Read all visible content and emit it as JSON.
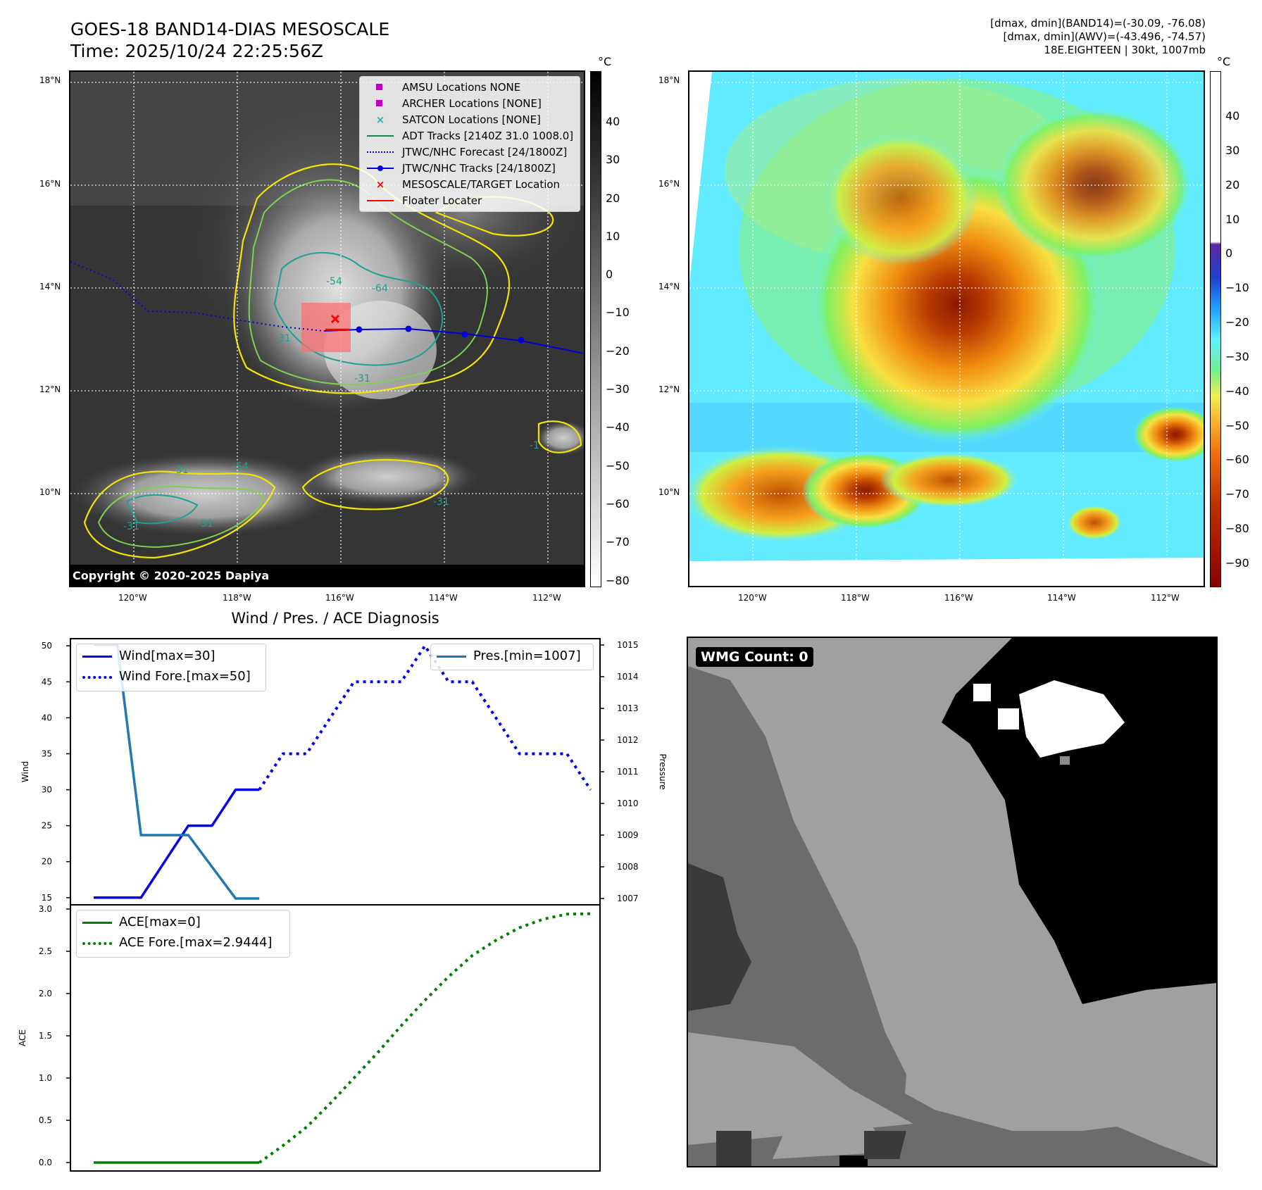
{
  "header": {
    "title_line1": "GOES-18 BAND14-DIAS MESOSCALE",
    "title_line2": "Time: 2025/10/24 22:25:56Z",
    "info_line1": "[dmax, dmin](BAND14)=(-30.09, -76.08)",
    "info_line2": "[dmax, dmin](AWV)=(-43.496, -74.57)",
    "info_line3": "18E.EIGHTEEN | 30kt, 1007mb"
  },
  "map": {
    "lat_labels": [
      "18°N",
      "16°N",
      "14°N",
      "12°N",
      "10°N"
    ],
    "lon_labels": [
      "120°W",
      "118°W",
      "116°W",
      "114°W",
      "112°W"
    ],
    "copyright": "Copyright © 2020-2025 Dapiya",
    "contour_labels": [
      "-54",
      "-64",
      "-31",
      "-31",
      "-31",
      "-31",
      "-54",
      "-31",
      "-31",
      "-1"
    ],
    "legend": [
      {
        "label": "AMSU Locations NONE",
        "symbol": "square",
        "color": "#c000c0"
      },
      {
        "label": "ARCHER Locations [NONE]",
        "symbol": "square",
        "color": "#c000c0"
      },
      {
        "label": "SATCON Locations [NONE]",
        "symbol": "x",
        "color": "#20b0b0"
      },
      {
        "label": "ADT Tracks [2140Z 31.0 1008.0]",
        "symbol": "line",
        "color": "#118844"
      },
      {
        "label": "JTWC/NHC Forecast [24/1800Z]",
        "symbol": "dotted",
        "color": "#0000dd"
      },
      {
        "label": "JTWC/NHC Tracks [24/1800Z]",
        "symbol": "dot-line",
        "color": "#0000dd"
      },
      {
        "label": "MESOSCALE/TARGET Location",
        "symbol": "x",
        "color": "#ff0000"
      },
      {
        "label": "Floater Locater",
        "symbol": "line",
        "color": "#ff0000"
      }
    ]
  },
  "colorbars": {
    "unit": "°C",
    "gray_ticks": [
      "40",
      "30",
      "20",
      "10",
      "0",
      "−10",
      "−20",
      "−30",
      "−40",
      "−50",
      "−60",
      "−70",
      "−80"
    ],
    "color_ticks": [
      "40",
      "30",
      "20",
      "10",
      "0",
      "−10",
      "−20",
      "−30",
      "−40",
      "−50",
      "−60",
      "−70",
      "−80",
      "−90"
    ]
  },
  "diagnosis": {
    "title": "Wind / Pres. / ACE Diagnosis",
    "wind_ylabel": "Wind",
    "pres_ylabel": "Pressure",
    "ace_ylabel": "ACE",
    "legend_wind": "Wind[max=30]",
    "legend_wind_fore": "Wind Fore.[max=50]",
    "legend_pres": "Pres.[min=1007]",
    "legend_ace": "ACE[max=0]",
    "legend_ace_fore": "ACE Fore.[max=2.9444]",
    "wind_ticks": [
      "50",
      "45",
      "40",
      "35",
      "30",
      "25",
      "20",
      "15"
    ],
    "pres_ticks": [
      "1015",
      "1014",
      "1013",
      "1012",
      "1011",
      "1010",
      "1009",
      "1008",
      "1007"
    ],
    "ace_ticks": [
      "3.0",
      "2.5",
      "2.0",
      "1.5",
      "1.0",
      "0.5",
      "0.0"
    ]
  },
  "wmg": {
    "label": "WMG Count: 0"
  },
  "chart_data": {
    "type": "line",
    "panels": [
      {
        "name": "wind",
        "ylim": [
          14,
          51
        ],
        "series": [
          {
            "name": "Wind[max=30]",
            "color": "#0000ee",
            "style": "solid",
            "x": [
              0,
              1,
              2,
              3,
              4,
              5,
              6,
              7
            ],
            "y": [
              15,
              15,
              15,
              20,
              25,
              25,
              30,
              30
            ]
          },
          {
            "name": "Wind Fore.[max=50]",
            "color": "#0000ee",
            "style": "dotted",
            "x": [
              7,
              8,
              9,
              10,
              11,
              12,
              13,
              14,
              15,
              16,
              17,
              18,
              19,
              20,
              21
            ],
            "y": [
              30,
              35,
              35,
              40,
              45,
              45,
              45,
              50,
              45,
              45,
              40,
              35,
              35,
              35,
              30
            ]
          }
        ]
      },
      {
        "name": "pressure",
        "ylim": [
          1006.8,
          1015.2
        ],
        "series": [
          {
            "name": "Pres.[min=1007]",
            "color": "#1f77b4",
            "style": "solid",
            "x": [
              0,
              1,
              2,
              3,
              4,
              5,
              6,
              7
            ],
            "y": [
              1015,
              1015,
              1009,
              1009,
              1009,
              1008,
              1007,
              1007
            ]
          }
        ]
      },
      {
        "name": "ace",
        "ylim": [
          -0.1,
          3.05
        ],
        "series": [
          {
            "name": "ACE[max=0]",
            "color": "#008000",
            "style": "solid",
            "x": [
              0,
              7
            ],
            "y": [
              0,
              0
            ]
          },
          {
            "name": "ACE Fore.[max=2.9444]",
            "color": "#008000",
            "style": "dotted",
            "x": [
              7,
              8,
              9,
              10,
              11,
              12,
              13,
              14,
              15,
              16,
              17,
              18,
              19,
              20,
              21
            ],
            "y": [
              0,
              0.2,
              0.42,
              0.7,
              1.0,
              1.3,
              1.62,
              1.92,
              2.2,
              2.45,
              2.63,
              2.78,
              2.88,
              2.94,
              2.9444
            ]
          }
        ]
      }
    ]
  }
}
